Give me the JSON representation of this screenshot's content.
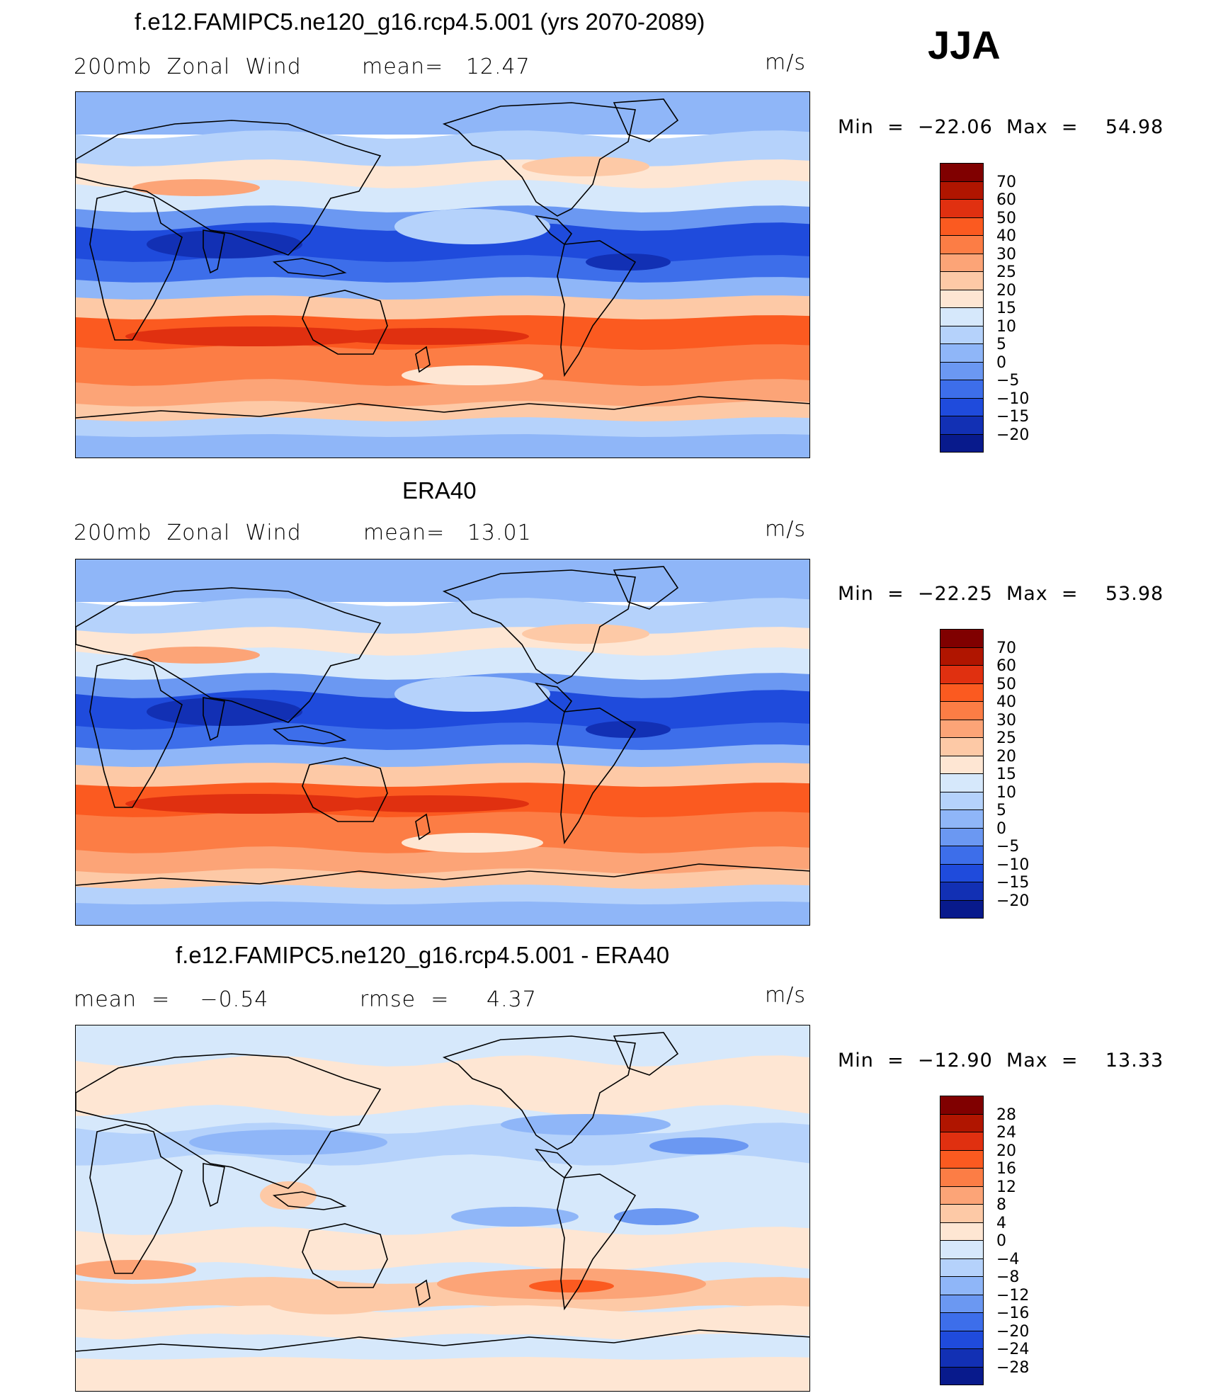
{
  "season": "JJA",
  "panels": [
    {
      "id": "model",
      "title": "f.e12.FAMIPC5.ne120_g16.rcp4.5.001 (yrs 2070-2089)",
      "left_label": "200mb  Zonal  Wind",
      "mid_label": "mean=   12.47",
      "units": "m/s",
      "minmax": "Min  =  −22.06  Max  =    54.98",
      "colorbar_labels": [
        "70",
        "60",
        "50",
        "40",
        "30",
        "25",
        "20",
        "15",
        "10",
        "5",
        "0",
        "−5",
        "−10",
        "−15",
        "−20"
      ],
      "colorbar_colors": [
        "#800000",
        "#b01500",
        "#e03010",
        "#fb5a20",
        "#fc7d45",
        "#fca477",
        "#fdc9a6",
        "#fee6d3",
        "#d6e8fb",
        "#b5d2fb",
        "#8fb6f8",
        "#6b98f2",
        "#3d6eea",
        "#1f4bdc",
        "#1230b4",
        "#081a8c"
      ]
    },
    {
      "id": "obs",
      "title": "ERA40",
      "left_label": "200mb  Zonal  Wind",
      "mid_label": "mean=   13.01",
      "units": "m/s",
      "minmax": "Min  =  −22.25  Max  =    53.98",
      "colorbar_labels": [
        "70",
        "60",
        "50",
        "40",
        "30",
        "25",
        "20",
        "15",
        "10",
        "5",
        "0",
        "−5",
        "−10",
        "−15",
        "−20"
      ],
      "colorbar_colors": [
        "#800000",
        "#b01500",
        "#e03010",
        "#fb5a20",
        "#fc7d45",
        "#fca477",
        "#fdc9a6",
        "#fee6d3",
        "#d6e8fb",
        "#b5d2fb",
        "#8fb6f8",
        "#6b98f2",
        "#3d6eea",
        "#1f4bdc",
        "#1230b4",
        "#081a8c"
      ]
    },
    {
      "id": "diff",
      "title": "f.e12.FAMIPC5.ne120_g16.rcp4.5.001 - ERA40",
      "left_label": "mean  =    −0.54",
      "mid_label": "rmse  =     4.37",
      "units": "m/s",
      "minmax": "Min  =  −12.90  Max  =    13.33",
      "colorbar_labels": [
        "28",
        "24",
        "20",
        "16",
        "12",
        "8",
        "4",
        "0",
        "−4",
        "−8",
        "−12",
        "−16",
        "−20",
        "−24",
        "−28"
      ],
      "colorbar_colors": [
        "#800000",
        "#b01500",
        "#e03010",
        "#fb5a20",
        "#fc7d45",
        "#fca477",
        "#fdc9a6",
        "#fee6d3",
        "#d6e8fb",
        "#b5d2fb",
        "#8fb6f8",
        "#6b98f2",
        "#3d6eea",
        "#1f4bdc",
        "#1230b4",
        "#081a8c"
      ]
    }
  ]
}
